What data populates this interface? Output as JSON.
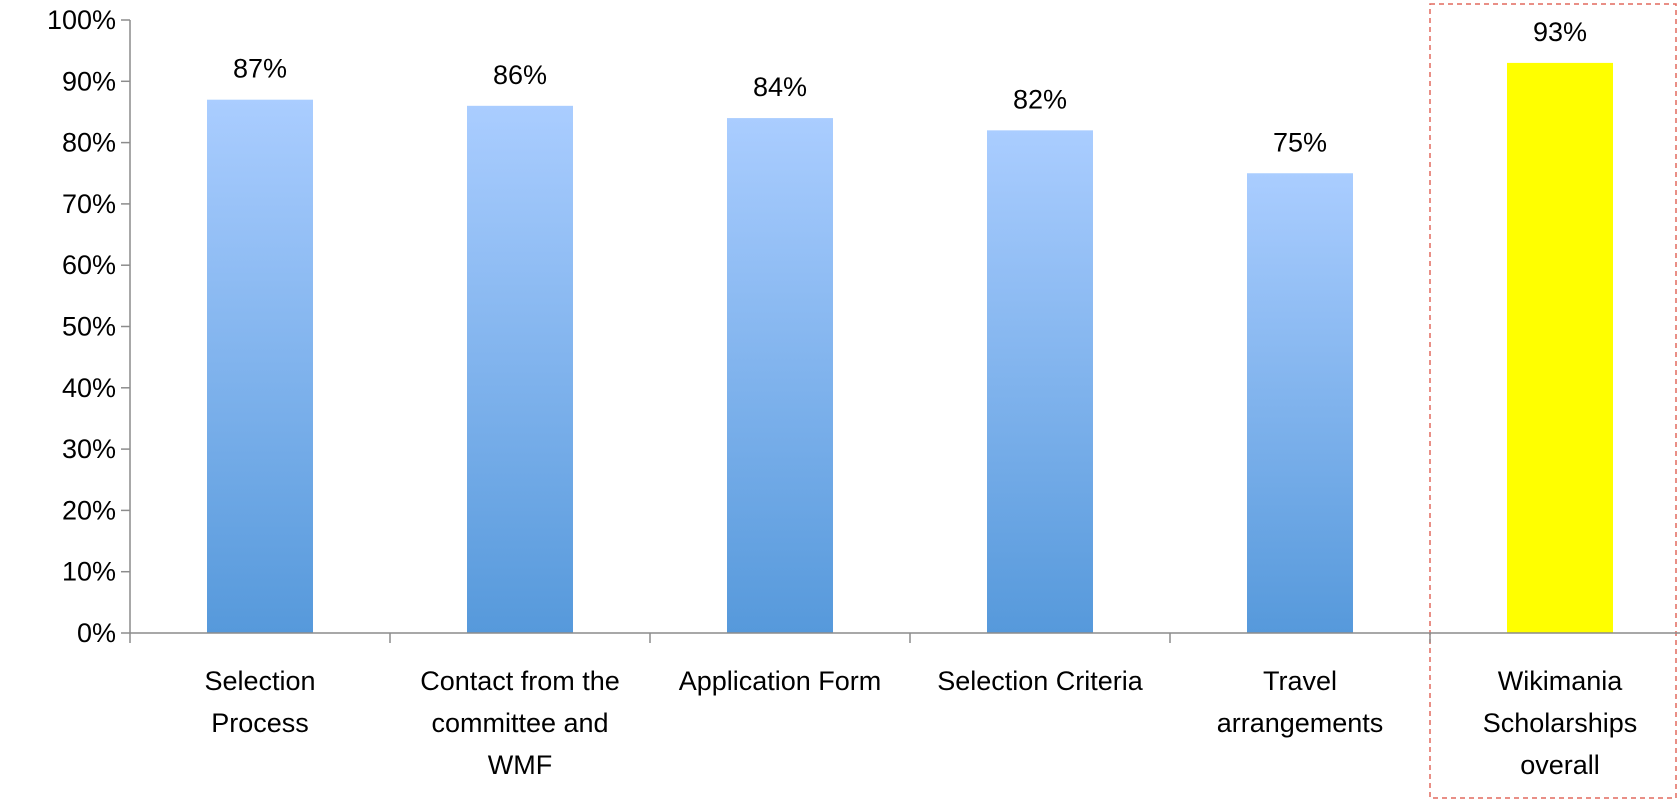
{
  "chart_data": {
    "type": "bar",
    "title": "",
    "xlabel": "",
    "ylabel": "",
    "ylim": [
      0,
      100
    ],
    "y_ticks": [
      0,
      10,
      20,
      30,
      40,
      50,
      60,
      70,
      80,
      90,
      100
    ],
    "y_tick_labels": [
      "0%",
      "10%",
      "20%",
      "30%",
      "40%",
      "50%",
      "60%",
      "70%",
      "80%",
      "90%",
      "100%"
    ],
    "categories": [
      "Selection Process",
      "Contact from the committee and WMF",
      "Application Form",
      "Selection Criteria",
      "Travel arrangements",
      "Wikimania Scholarships overall"
    ],
    "category_label_lines": [
      [
        "Selection",
        "Process"
      ],
      [
        "Contact from the",
        "committee and",
        "WMF"
      ],
      [
        "Application Form"
      ],
      [
        "Selection Criteria"
      ],
      [
        "Travel",
        "arrangements"
      ],
      [
        "Wikimania",
        "Scholarships",
        "overall"
      ]
    ],
    "values": [
      87,
      86,
      84,
      82,
      75,
      93
    ],
    "data_labels": [
      "87%",
      "86%",
      "84%",
      "82%",
      "75%",
      "93%"
    ],
    "highlighted_category": "Wikimania Scholarships overall",
    "grid": false,
    "legend": "none",
    "colors": {
      "bar_gradient_top": "#aacdff",
      "bar_gradient_bottom": "#5699db",
      "highlight_bar": "#ffff00",
      "highlight_box": "#e26a5f",
      "axis": "#8c8c8c",
      "text": "#000000"
    }
  }
}
